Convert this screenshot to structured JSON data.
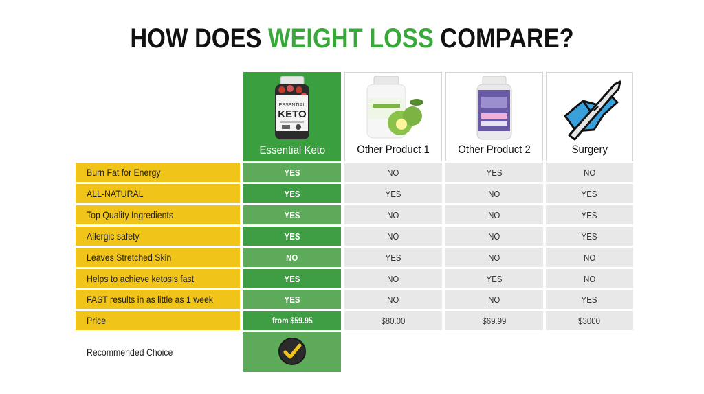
{
  "title": {
    "part1": "HOW DOES ",
    "highlight": "WEIGHT LOSS",
    "part2": " COMPARE?"
  },
  "colors": {
    "accent_green": "#38a83a",
    "row_label_yellow": "#f1c419",
    "cell_gray": "#e8e8e8"
  },
  "columns": [
    {
      "name": "Essential Keto",
      "icon": "essential-keto-bottle-icon",
      "bottle_brand": "ESSENTIAL",
      "bottle_name": "KETO"
    },
    {
      "name": "Other Product 1",
      "icon": "garcinia-bottle-icon"
    },
    {
      "name": "Other Product 2",
      "icon": "keto-pill-bottle-icon"
    },
    {
      "name": "Surgery",
      "icon": "scalpel-hand-icon"
    }
  ],
  "rows": [
    {
      "label": "Burn Fat for Energy",
      "values": [
        "YES",
        "NO",
        "YES",
        "NO"
      ]
    },
    {
      "label": "ALL-NATURAL",
      "values": [
        "YES",
        "YES",
        "NO",
        "YES"
      ]
    },
    {
      "label": "Top Quality Ingredients",
      "values": [
        "YES",
        "NO",
        "NO",
        "YES"
      ]
    },
    {
      "label": "Allergic safety",
      "values": [
        "YES",
        "NO",
        "NO",
        "YES"
      ]
    },
    {
      "label": "Leaves Stretched Skin",
      "values": [
        "NO",
        "YES",
        "NO",
        "NO"
      ]
    },
    {
      "label": "Helps to achieve ketosis fast",
      "values": [
        "YES",
        "NO",
        "YES",
        "NO"
      ]
    },
    {
      "label": "FAST results in as little as 1 week",
      "values": [
        "YES",
        "NO",
        "NO",
        "YES"
      ]
    },
    {
      "label": "Price",
      "values": [
        "from $59.95",
        "$80.00",
        "$69.99",
        "$3000"
      ]
    }
  ],
  "recommended": {
    "label": "Recommended Choice",
    "icon": "checkmark-badge-icon"
  }
}
